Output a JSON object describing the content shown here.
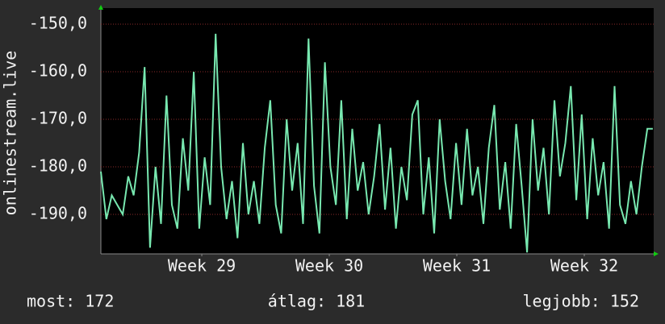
{
  "chart_data": {
    "type": "line",
    "y_label": "onlinestream.live",
    "x": [
      0,
      0.3,
      0.6,
      0.9,
      1.2,
      1.5,
      1.8,
      2.1,
      2.4,
      2.7,
      3,
      3.3,
      3.6,
      3.9,
      4.2,
      4.5,
      4.8,
      5.1,
      5.4,
      5.7,
      6,
      6.3,
      6.6,
      6.9,
      7.2,
      7.5,
      7.8,
      8.1,
      8.4,
      8.7,
      9,
      9.3,
      9.6,
      9.9,
      10.2,
      10.5,
      10.8,
      11.1,
      11.4,
      11.7,
      12,
      12.3,
      12.6,
      12.9,
      13.2,
      13.5,
      13.8,
      14.1,
      14.4,
      14.7,
      15,
      15.3,
      15.6,
      15.9,
      16.2,
      16.5,
      16.8,
      17.1,
      17.4,
      17.7,
      18,
      18.3,
      18.6,
      18.9,
      19.2,
      19.5,
      19.8,
      20.1,
      20.4,
      20.7,
      21,
      21.3,
      21.6,
      21.9,
      22.2,
      22.5,
      22.8,
      23.1,
      23.4,
      23.7,
      24,
      24.3,
      24.6,
      24.9,
      25.2,
      25.5,
      25.8,
      26.1,
      26.4,
      26.7,
      27,
      27.3,
      27.6,
      27.9,
      28.2,
      28.5,
      28.8,
      29.1,
      29.4,
      29.7,
      30,
      30.3
    ],
    "series": [
      {
        "name": "onlinestream.live",
        "color": "#78e8b0",
        "values": [
          -181,
          -191,
          -186,
          -188,
          -190,
          -182,
          -186,
          -177,
          -159,
          -197,
          -180,
          -192,
          -165,
          -188,
          -193,
          -174,
          -185,
          -160,
          -193,
          -178,
          -188,
          -152,
          -180,
          -191,
          -183,
          -195,
          -175,
          -190,
          -183,
          -192,
          -176,
          -166,
          -188,
          -194,
          -170,
          -185,
          -175,
          -192,
          -153,
          -184,
          -194,
          -158,
          -180,
          -188,
          -166,
          -191,
          -172,
          -185,
          -179,
          -190,
          -182,
          -171,
          -189,
          -176,
          -193,
          -180,
          -187,
          -169,
          -166,
          -190,
          -178,
          -194,
          -170,
          -183,
          -191,
          -175,
          -188,
          -172,
          -186,
          -180,
          -192,
          -176,
          -167,
          -189,
          -179,
          -193,
          -171,
          -184,
          -198,
          -170,
          -185,
          -176,
          -190,
          -166,
          -182,
          -175,
          -163,
          -187,
          -169,
          -191,
          -174,
          -186,
          -179,
          -193,
          -163,
          -188,
          -192,
          -183,
          -190,
          -180,
          -172,
          -172
        ]
      }
    ],
    "xlim": [
      0,
      30.35
    ],
    "xticks": [
      {
        "value": 5.54,
        "label": "Week 29"
      },
      {
        "value": 12.54,
        "label": "Week 30"
      },
      {
        "value": 19.54,
        "label": "Week 31"
      },
      {
        "value": 26.54,
        "label": "Week 32"
      }
    ],
    "ylim": [
      -198.3,
      -146.6
    ],
    "yticks": [
      {
        "value": -190,
        "label": "-190,0"
      },
      {
        "value": -180,
        "label": "-180,0"
      },
      {
        "value": -170,
        "label": "-170,0"
      },
      {
        "value": -160,
        "label": "-160,0"
      },
      {
        "value": -150,
        "label": "-150,0"
      }
    ],
    "grid": true,
    "footer": {
      "current": "most: 172",
      "average": "átlag: 181",
      "best": "legjobb: 152"
    }
  }
}
